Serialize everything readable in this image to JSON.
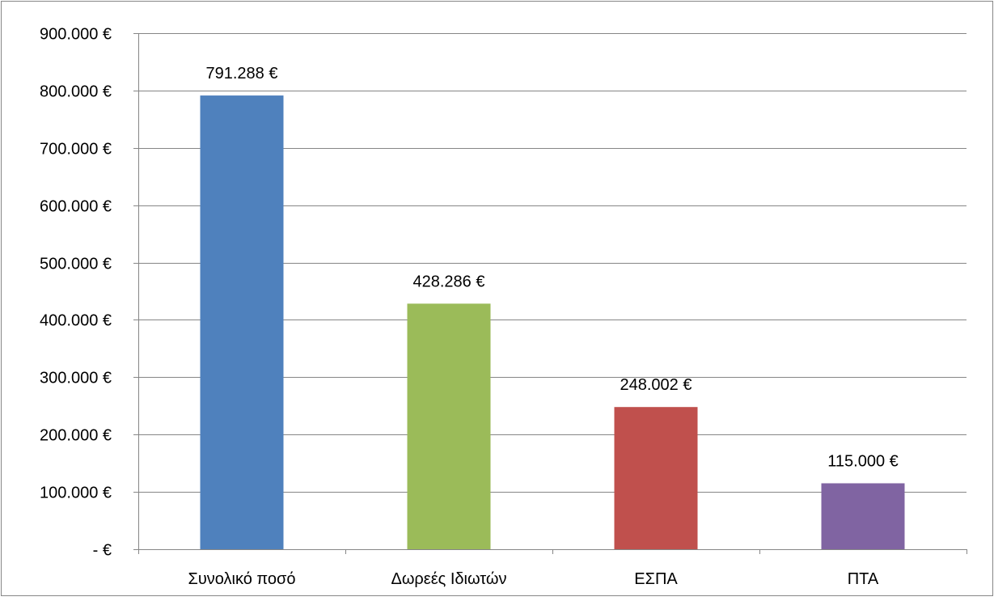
{
  "chart_data": {
    "type": "bar",
    "categories": [
      "Συνολικό ποσό",
      "Δωρεές Ιδιωτών",
      "ΕΣΠΑ",
      "ΠΤΑ"
    ],
    "values": [
      791288,
      428286,
      248002,
      115000
    ],
    "data_labels": [
      "791.288 €",
      "428.286 €",
      "248.002 €",
      "115.000 €"
    ],
    "colors": [
      "#4F81BD",
      "#9BBB59",
      "#C0504D",
      "#8064A2"
    ],
    "ylim": [
      0,
      900000
    ],
    "yticks": [
      0,
      100000,
      200000,
      300000,
      400000,
      500000,
      600000,
      700000,
      800000,
      900000
    ],
    "ytick_labels": [
      "-  €",
      "100.000 €",
      "200.000 €",
      "300.000 €",
      "400.000 €",
      "500.000 €",
      "600.000 €",
      "700.000 €",
      "800.000 €",
      "900.000 €"
    ],
    "grid": true,
    "legend": false,
    "title": "",
    "xlabel": "",
    "ylabel": ""
  }
}
